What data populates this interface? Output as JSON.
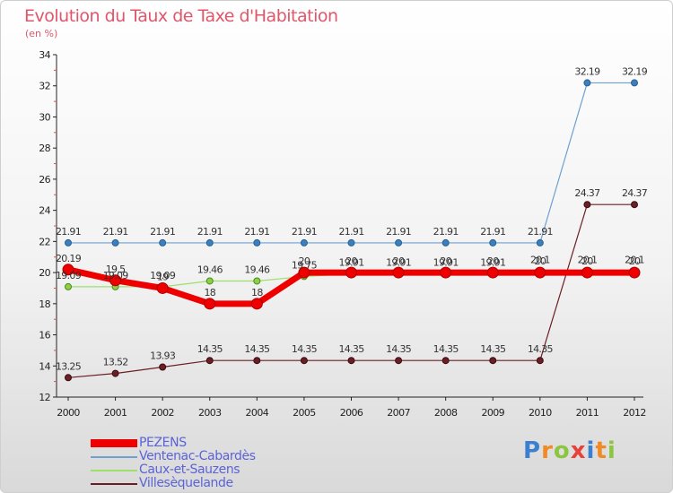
{
  "title": "Evolution du Taux de Taxe d'Habitation",
  "subtitle": "(en %)",
  "logo": {
    "letters": [
      "P",
      "r",
      "o",
      "x",
      "i",
      "t",
      "i"
    ],
    "colors": [
      "#3a7fd0",
      "#f08a24",
      "#8cc63f",
      "#e8403a",
      "#3a7fd0",
      "#f08a24",
      "#8cc63f"
    ]
  },
  "chart_data": {
    "type": "line",
    "x": [
      "2000",
      "2001",
      "2002",
      "2003",
      "2004",
      "2005",
      "2006",
      "2007",
      "2008",
      "2009",
      "2010",
      "2011",
      "2012"
    ],
    "ylim": [
      12,
      34
    ],
    "yticks": [
      12,
      14,
      16,
      18,
      20,
      22,
      24,
      26,
      28,
      30,
      32,
      34
    ],
    "grid": false,
    "legend_position": "bottom-left",
    "series": [
      {
        "name": "Villesèquelande",
        "color": "#6b1f24",
        "values": [
          13.25,
          13.52,
          13.93,
          14.35,
          14.35,
          14.35,
          14.35,
          14.35,
          14.35,
          14.35,
          14.35,
          24.37,
          24.37
        ],
        "labels": [
          "13.25",
          "13.52",
          "13.93",
          "14.35",
          "14.35",
          "14.35",
          "14.35",
          "14.35",
          "14.35",
          "14.35",
          "14.35",
          "24.37",
          "24.37"
        ]
      },
      {
        "name": "Ventenac-Cabardès",
        "color": "#6fa0d0",
        "values": [
          21.91,
          21.91,
          21.91,
          21.91,
          21.91,
          21.91,
          21.91,
          21.91,
          21.91,
          21.91,
          21.91,
          32.19,
          32.19
        ],
        "labels": [
          "21.91",
          "21.91",
          "21.91",
          "21.91",
          "21.91",
          "21.91",
          "21.91",
          "21.91",
          "21.91",
          "21.91",
          "21.91",
          "32.19",
          "32.19"
        ]
      },
      {
        "name": "Caux-et-Sauzens",
        "color": "#9ee06a",
        "values": [
          19.09,
          19.09,
          19.09,
          19.46,
          19.46,
          19.75,
          19.91,
          19.91,
          19.91,
          19.91,
          20.1,
          20.1,
          20.1
        ],
        "labels": [
          "19.09",
          "19.09",
          "19.09",
          "19.46",
          "19.46",
          "19.75",
          "19.91",
          "19.91",
          "19.91",
          "19.91",
          "20.1",
          "20.1",
          "20.1"
        ]
      },
      {
        "name": "PEZENS",
        "color": "#ee0000",
        "values": [
          20.19,
          19.5,
          19,
          18,
          18,
          20,
          20,
          20,
          20,
          20,
          20,
          20,
          20
        ],
        "labels": [
          "20.19",
          "19.5",
          "19",
          "18",
          "18",
          "20",
          "20",
          "20",
          "20",
          "20",
          "20",
          "20",
          "20"
        ]
      }
    ],
    "legend_order": [
      "PEZENS",
      "Ventenac-Cabardès",
      "Caux-et-Sauzens",
      "Villesèquelande"
    ]
  }
}
